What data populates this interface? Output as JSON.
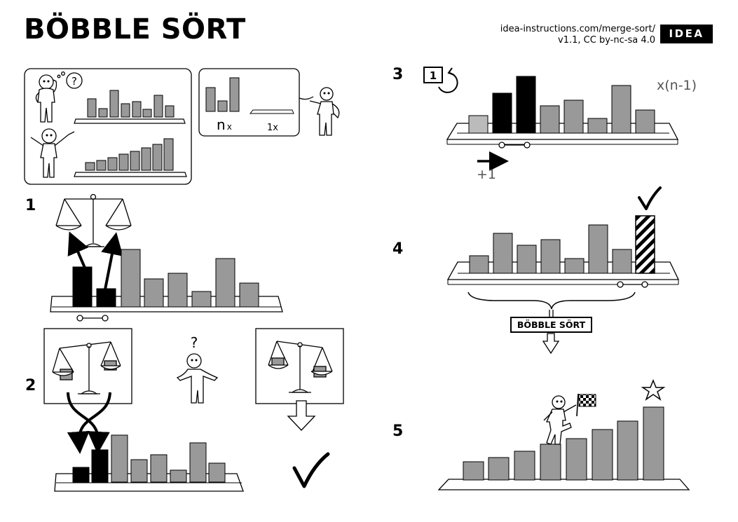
{
  "header": {
    "title": "BÖBBLE SÖRT",
    "url": "idea-instructions.com/merge-sort/",
    "version": "v1.1, CC by-nc-sa 4.0",
    "logo_text": "IDEA"
  },
  "steps": [
    "1",
    "2",
    "3",
    "4",
    "5"
  ],
  "intro": {
    "thought_symbol": "?",
    "pieces_label_n": "n",
    "pieces_label_n_sub": "x",
    "pieces_label_1": "1x"
  },
  "step2": {
    "question_mark": "?"
  },
  "step3": {
    "loop_badge": "1",
    "repeat_label": "x(n-1)",
    "advance_label": "+1"
  },
  "step4": {
    "section_label": "BÖBBLE SÖRT"
  },
  "colors": {
    "bar": "#999999",
    "black": "#000000",
    "shelf": "#ffffff",
    "stroke": "#000000"
  }
}
